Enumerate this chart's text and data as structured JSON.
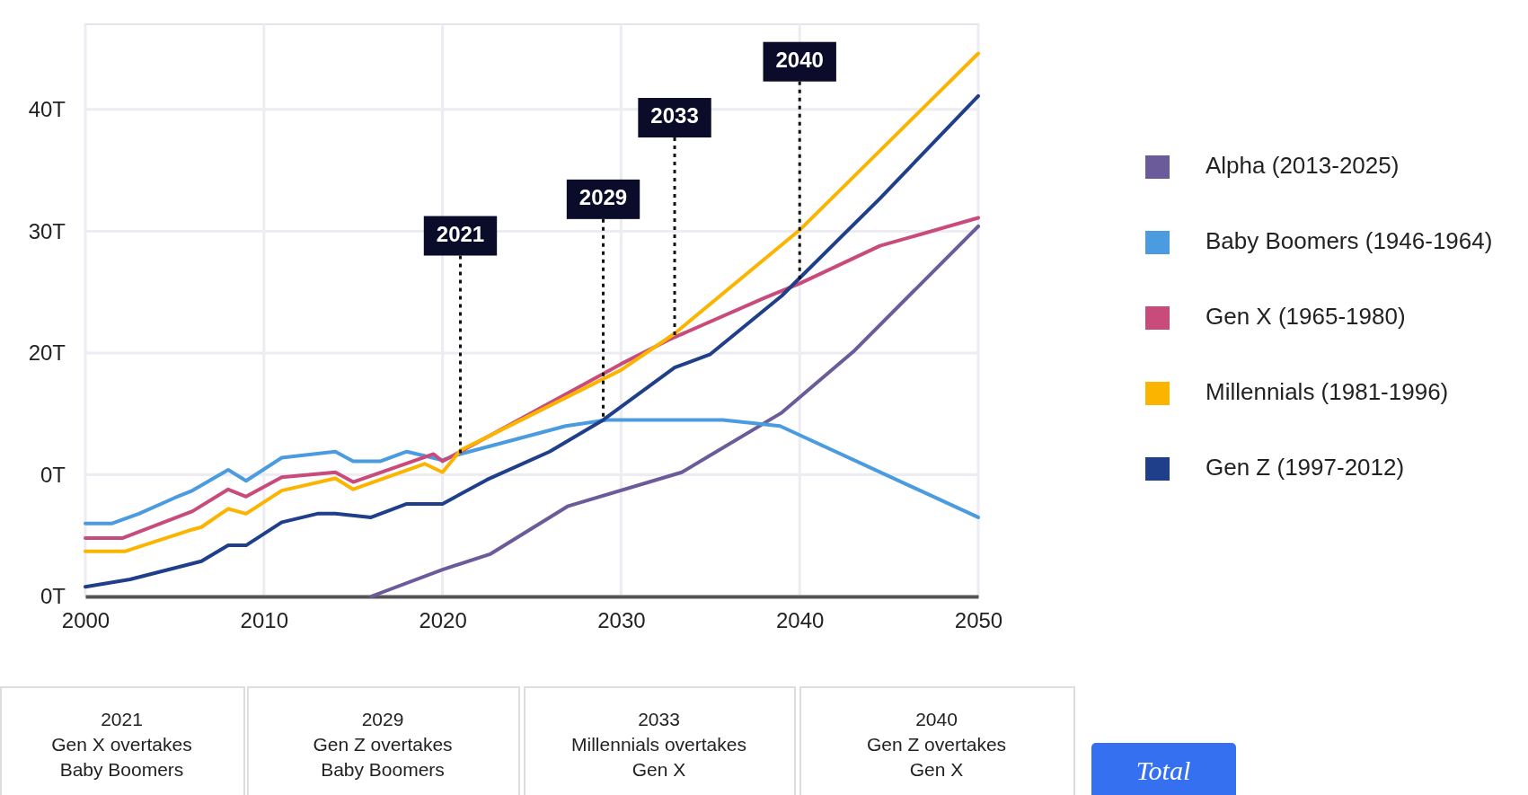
{
  "chart_data": {
    "type": "line",
    "xlim": [
      2000,
      2050
    ],
    "xticks": [
      2000,
      2010,
      2020,
      2030,
      2040,
      2050
    ],
    "ylim": [
      0,
      47
    ],
    "yticks": [
      {
        "value": 0,
        "label": "0T"
      },
      {
        "value": 10,
        "label": "0T"
      },
      {
        "value": 20,
        "label": "20T"
      },
      {
        "value": 30,
        "label": "30T"
      },
      {
        "value": 40,
        "label": "40T"
      }
    ],
    "grid": true,
    "legend": "right",
    "series": [
      {
        "name": "Alpha (2013-2025)",
        "color": "#6b5b9a",
        "x": [
          2016,
          2020,
          2022.7,
          2027,
          2033.4,
          2039,
          2043,
          2050
        ],
        "values": [
          0,
          2.2,
          3.5,
          7.4,
          10.2,
          15.1,
          20.1,
          30.4
        ]
      },
      {
        "name": "Baby Boomers  (1946-1964)",
        "color": "#4a9be0",
        "x": [
          2000,
          2001.5,
          2003,
          2005,
          2006,
          2008,
          2009,
          2011,
          2014,
          2015,
          2016.5,
          2018,
          2020,
          2020.75,
          2026.9,
          2029.2,
          2035.7,
          2038.9,
          2050
        ],
        "values": [
          6.0,
          6.0,
          6.8,
          8.1,
          8.7,
          10.4,
          9.5,
          11.4,
          11.9,
          11.1,
          11.1,
          11.9,
          11.2,
          11.6,
          14.0,
          14.5,
          14.5,
          14.0,
          6.5
        ]
      },
      {
        "name": "Gen X (1965-1980)",
        "color": "#c94b7b",
        "x": [
          2000,
          2002.1,
          2006,
          2008,
          2009,
          2011,
          2014,
          2015,
          2019.5,
          2020,
          2030,
          2032.7,
          2038,
          2040,
          2044.5,
          2050
        ],
        "values": [
          4.8,
          4.8,
          7.0,
          8.8,
          8.2,
          9.8,
          10.2,
          9.4,
          11.7,
          11.1,
          19.1,
          21.1,
          24.5,
          25.7,
          28.8,
          31.1
        ]
      },
      {
        "name": "Millennials (1981-1996)",
        "color": "#fbb400",
        "x": [
          2000,
          2002.2,
          2006,
          2006.5,
          2008,
          2009,
          2011,
          2014,
          2015,
          2019,
          2020,
          2021,
          2030,
          2033,
          2040,
          2050
        ],
        "values": [
          3.7,
          3.7,
          5.5,
          5.7,
          7.2,
          6.8,
          8.7,
          9.7,
          8.8,
          10.9,
          10.2,
          12.0,
          18.6,
          21.6,
          30.1,
          44.6
        ]
      },
      {
        "name": "Gen Z (1997-2012)",
        "color": "#1f3f8a",
        "x": [
          2000,
          2002.5,
          2006.5,
          2008,
          2009,
          2011,
          2013,
          2014,
          2016,
          2018,
          2020,
          2022.5,
          2026,
          2029,
          2033,
          2035,
          2039,
          2044.5,
          2050
        ],
        "values": [
          0.8,
          1.4,
          2.9,
          4.2,
          4.2,
          6.1,
          6.8,
          6.8,
          6.5,
          7.6,
          7.6,
          9.6,
          11.9,
          14.5,
          18.8,
          19.9,
          24.7,
          32.7,
          41.1
        ]
      }
    ],
    "annotations": [
      {
        "text": "2021",
        "x": 2021,
        "y": 11.5
      },
      {
        "text": "2029",
        "x": 2029,
        "y": 14.5
      },
      {
        "text": "2033",
        "x": 2033,
        "y": 21.2
      },
      {
        "text": "2040",
        "x": 2040,
        "y": 25.8
      },
      "2021\nGen X overtakes\nBaby Boomers",
      "2029\nGen Z overtakes\nBaby Boomers",
      "2033\nMillennials overtakes\nGen X",
      "2040\nGen Z overtakes\nGen X",
      "Total"
    ]
  }
}
